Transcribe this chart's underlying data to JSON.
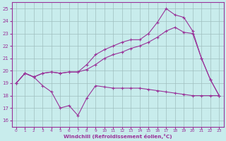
{
  "xlabel": "Windchill (Refroidissement éolien,°C)",
  "bg_color": "#c8ecec",
  "line_color": "#993399",
  "grid_color": "#9fbfbf",
  "x_ticks": [
    0,
    1,
    2,
    3,
    4,
    5,
    6,
    7,
    8,
    9,
    10,
    11,
    12,
    13,
    14,
    15,
    16,
    17,
    18,
    19,
    20,
    21,
    22,
    23
  ],
  "ylim": [
    15.5,
    25.5
  ],
  "xlim": [
    -0.5,
    23.5
  ],
  "yticks": [
    16,
    17,
    18,
    19,
    20,
    21,
    22,
    23,
    24,
    25
  ],
  "line1": {
    "x": [
      0,
      1,
      2,
      3,
      4,
      5,
      6,
      7,
      8,
      9,
      10,
      11,
      12,
      13,
      14,
      15,
      16,
      17,
      18,
      19,
      20,
      21,
      22,
      23
    ],
    "y": [
      19.0,
      19.8,
      19.5,
      18.8,
      18.3,
      17.0,
      17.2,
      16.4,
      17.8,
      18.8,
      18.7,
      18.6,
      18.6,
      18.6,
      18.6,
      18.5,
      18.4,
      18.3,
      18.2,
      18.1,
      18.0,
      18.0,
      18.0,
      18.0
    ]
  },
  "line2": {
    "x": [
      0,
      1,
      2,
      3,
      4,
      5,
      6,
      7,
      8,
      9,
      10,
      11,
      12,
      13,
      14,
      15,
      16,
      17,
      18,
      19,
      20,
      21,
      22,
      23
    ],
    "y": [
      19.0,
      19.8,
      19.5,
      19.8,
      19.9,
      19.8,
      19.9,
      19.9,
      20.5,
      21.3,
      21.7,
      22.0,
      22.3,
      22.5,
      22.5,
      23.0,
      23.9,
      25.0,
      24.5,
      24.3,
      23.2,
      21.0,
      19.3,
      18.0
    ]
  },
  "line3": {
    "x": [
      0,
      1,
      2,
      3,
      4,
      5,
      6,
      7,
      8,
      9,
      10,
      11,
      12,
      13,
      14,
      15,
      16,
      17,
      18,
      19,
      20,
      21,
      22,
      23
    ],
    "y": [
      19.0,
      19.8,
      19.5,
      19.8,
      19.9,
      19.8,
      19.9,
      19.9,
      20.1,
      20.5,
      21.0,
      21.3,
      21.5,
      21.8,
      22.0,
      22.3,
      22.7,
      23.2,
      23.5,
      23.1,
      23.0,
      21.0,
      19.3,
      18.0
    ]
  }
}
